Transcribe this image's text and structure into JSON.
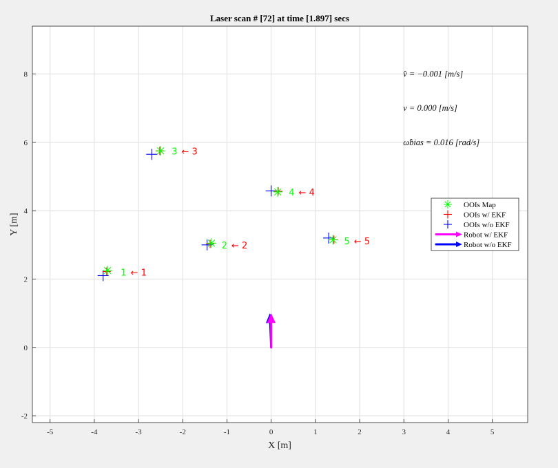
{
  "chart_data": {
    "type": "scatter",
    "title": "Laser scan # [72] at time [1.897] secs",
    "xlabel": "X [m]",
    "ylabel": "Y [m]",
    "xlim": [
      -5.4,
      5.8
    ],
    "ylim": [
      -2.2,
      9.4
    ],
    "xticks": [
      -5,
      -4,
      -3,
      -2,
      -1,
      0,
      1,
      2,
      3,
      4,
      5
    ],
    "yticks": [
      -2,
      0,
      2,
      4,
      6,
      8
    ],
    "grid": true,
    "legend_position": "right",
    "series": [
      {
        "name": "OOIs Map",
        "marker": "asterisk",
        "color": "#00ff00",
        "points": [
          [
            -3.7,
            2.25
          ],
          [
            -1.35,
            3.05
          ],
          [
            -2.5,
            5.75
          ],
          [
            0.15,
            4.55
          ],
          [
            1.4,
            3.15
          ]
        ]
      },
      {
        "name": "OOIs w/ EKF",
        "marker": "plus",
        "color": "#ff0000",
        "points": [
          [
            -3.72,
            2.22
          ],
          [
            -1.38,
            3.03
          ],
          [
            -2.52,
            5.75
          ],
          [
            0.16,
            4.57
          ],
          [
            1.42,
            3.15
          ]
        ]
      },
      {
        "name": "OOIs w/o EKF",
        "marker": "plus",
        "color": "#0000ff",
        "points": [
          [
            -3.8,
            2.1
          ],
          [
            -1.45,
            3.0
          ],
          [
            -2.7,
            5.65
          ],
          [
            0.0,
            4.58
          ],
          [
            1.3,
            3.2
          ]
        ]
      },
      {
        "name": "Robot w/ EKF",
        "marker": "arrow",
        "color": "#ff00ff",
        "arrow": {
          "x": 0.0,
          "y": 0.0,
          "dx": 0.0,
          "dy": 1.0
        }
      },
      {
        "name": "Robot w/o EKF",
        "marker": "arrow",
        "color": "#0000ff",
        "arrow": {
          "x": 0.0,
          "y": 0.0,
          "dx": -0.03,
          "dy": 1.0
        }
      }
    ],
    "annotations": [
      {
        "x": -3.4,
        "y": 2.2,
        "green": "1",
        "red": "← 1"
      },
      {
        "x": -1.12,
        "y": 3.0,
        "green": "2",
        "red": "← 2"
      },
      {
        "x": -2.25,
        "y": 5.74,
        "green": "3",
        "red": "← 3"
      },
      {
        "x": 0.4,
        "y": 4.55,
        "green": "4",
        "red": "← 4"
      },
      {
        "x": 1.65,
        "y": 3.12,
        "green": "5",
        "red": "← 5"
      }
    ],
    "info_text": [
      {
        "x": 3.0,
        "y": 8.0,
        "text": "v̂ = −0.001   [m/s]"
      },
      {
        "x": 3.0,
        "y": 7.0,
        "text": "v = 0.000   [m/s]"
      },
      {
        "x": 3.0,
        "y": 6.0,
        "text": "ω̂bias = 0.016   [rad/s]"
      }
    ],
    "colors": {
      "green": "#00ff00",
      "red": "#ff0000",
      "blue": "#0000ff",
      "magenta": "#ff00ff"
    }
  }
}
